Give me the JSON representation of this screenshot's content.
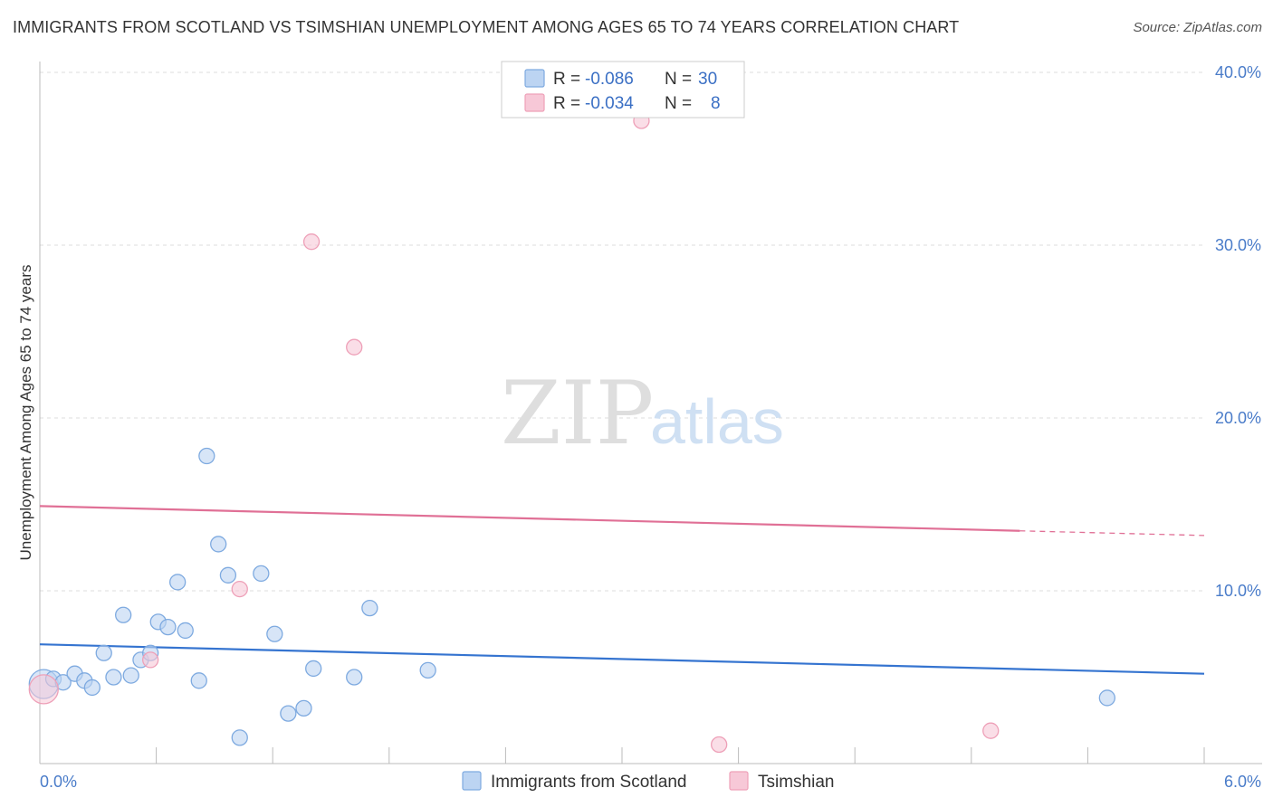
{
  "title": "IMMIGRANTS FROM SCOTLAND VS TSIMSHIAN UNEMPLOYMENT AMONG AGES 65 TO 74 YEARS CORRELATION CHART",
  "source": "Source: ZipAtlas.com",
  "watermark": {
    "zip": "ZIP",
    "atlas": "atlas"
  },
  "legend": {
    "rows": [
      {
        "r_label": "R =",
        "r_value": "-0.086",
        "n_label": "N =",
        "n_value": "30"
      },
      {
        "r_label": "R =",
        "r_value": "-0.034",
        "n_label": "N =",
        "n_value": "8"
      }
    ]
  },
  "colors": {
    "scotland_fill": "#bcd4f2",
    "scotland_stroke": "#7eaae0",
    "scotland_line": "#3574d0",
    "tsimshian_fill": "#f7c8d7",
    "tsimshian_stroke": "#eea0b8",
    "tsimshian_line": "#e07096",
    "grid": "#dddddd",
    "axis_text": "#4a7cc9"
  },
  "chart_data": {
    "type": "scatter",
    "title": "IMMIGRANTS FROM SCOTLAND VS TSIMSHIAN UNEMPLOYMENT AMONG AGES 65 TO 74 YEARS CORRELATION CHART",
    "xlabel": "",
    "ylabel": "Unemployment Among Ages 65 to 74 years",
    "xlim": [
      0,
      6.0
    ],
    "ylim": [
      0,
      40.0
    ],
    "x_tick_labels": [
      "0.0%",
      "6.0%"
    ],
    "y_ticks": [
      10,
      20,
      30,
      40
    ],
    "y_tick_labels": [
      "10.0%",
      "20.0%",
      "30.0%",
      "40.0%"
    ],
    "grid": true,
    "legend_position": "bottom",
    "series": [
      {
        "name": "Immigrants from Scotland",
        "color_key": "scotland",
        "r": -0.086,
        "n": 30,
        "trend": {
          "x0": 0.0,
          "y0": 6.9,
          "x1": 6.0,
          "y1": 5.2,
          "solid_until": 6.0
        },
        "points": [
          {
            "x": 0.02,
            "y": 4.6,
            "big": true
          },
          {
            "x": 0.07,
            "y": 4.9
          },
          {
            "x": 0.12,
            "y": 4.7
          },
          {
            "x": 0.18,
            "y": 5.2
          },
          {
            "x": 0.23,
            "y": 4.8
          },
          {
            "x": 0.27,
            "y": 4.4
          },
          {
            "x": 0.33,
            "y": 6.4
          },
          {
            "x": 0.38,
            "y": 5.0
          },
          {
            "x": 0.43,
            "y": 8.6
          },
          {
            "x": 0.47,
            "y": 5.1
          },
          {
            "x": 0.52,
            "y": 6.0
          },
          {
            "x": 0.57,
            "y": 6.4
          },
          {
            "x": 0.61,
            "y": 8.2
          },
          {
            "x": 0.66,
            "y": 7.9
          },
          {
            "x": 0.71,
            "y": 10.5
          },
          {
            "x": 0.75,
            "y": 7.7
          },
          {
            "x": 0.82,
            "y": 4.8
          },
          {
            "x": 0.86,
            "y": 17.8
          },
          {
            "x": 0.92,
            "y": 12.7
          },
          {
            "x": 0.97,
            "y": 10.9
          },
          {
            "x": 1.03,
            "y": 1.5
          },
          {
            "x": 1.14,
            "y": 11.0
          },
          {
            "x": 1.21,
            "y": 7.5
          },
          {
            "x": 1.28,
            "y": 2.9
          },
          {
            "x": 1.36,
            "y": 3.2
          },
          {
            "x": 1.41,
            "y": 5.5
          },
          {
            "x": 1.62,
            "y": 5.0
          },
          {
            "x": 1.7,
            "y": 9.0
          },
          {
            "x": 2.0,
            "y": 5.4
          },
          {
            "x": 5.5,
            "y": 3.8
          }
        ]
      },
      {
        "name": "Tsimshian",
        "color_key": "tsimshian",
        "r": -0.034,
        "n": 8,
        "trend": {
          "x0": 0.0,
          "y0": 14.9,
          "x1": 6.0,
          "y1": 13.2,
          "solid_until": 5.05
        },
        "points": [
          {
            "x": 0.02,
            "y": 4.3,
            "big": true
          },
          {
            "x": 0.57,
            "y": 6.0
          },
          {
            "x": 1.03,
            "y": 10.1
          },
          {
            "x": 1.4,
            "y": 30.2
          },
          {
            "x": 1.62,
            "y": 24.1
          },
          {
            "x": 3.1,
            "y": 37.2
          },
          {
            "x": 3.5,
            "y": 1.1
          },
          {
            "x": 4.9,
            "y": 1.9
          }
        ]
      }
    ]
  }
}
